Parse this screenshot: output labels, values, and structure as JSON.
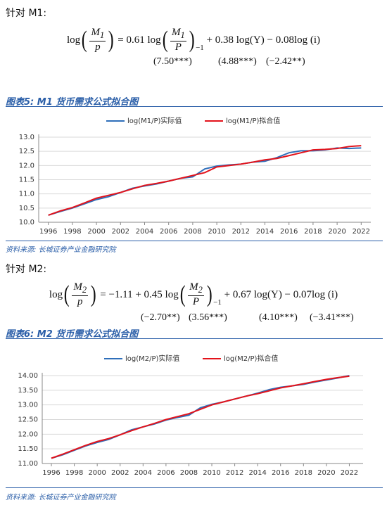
{
  "sections": [
    {
      "lead": "针对 M1:",
      "equation": [
        {
          "text": "log"
        },
        {
          "paren": "("
        },
        {
          "num": "M",
          "num_sub": "1",
          "den": "p"
        },
        {
          "paren": ")"
        },
        {
          "text": " = 0.61 log"
        },
        {
          "paren": "("
        },
        {
          "num": "M",
          "num_sub": "1",
          "den": "P"
        },
        {
          "paren": ")"
        },
        {
          "sub": "−1"
        },
        {
          "text": " + 0.38 log(Y) − 0.08log (i)"
        }
      ],
      "stats": [
        "(7.50***)",
        "(4.88***)",
        "(−2.42**)"
      ],
      "caption": "图表5:  M1 货币需求公式拟合图",
      "source": "资料来源: 长城证券产业金融研究院"
    },
    {
      "lead": "针对 M2:",
      "equation": [
        {
          "text": "log"
        },
        {
          "paren": "("
        },
        {
          "num": "M",
          "num_sub": "2",
          "den": "p"
        },
        {
          "paren": ")"
        },
        {
          "text": " = −1.11 + 0.45 log"
        },
        {
          "paren": "("
        },
        {
          "num": "M",
          "num_sub": "2",
          "den": "P"
        },
        {
          "paren": ")"
        },
        {
          "sub": "−1"
        },
        {
          "text": " + 0.67 log(Y) − 0.07log (i)"
        }
      ],
      "stats": [
        "(−2.70**)",
        "(3.56***)",
        "(4.10***)",
        "(−3.41***)"
      ],
      "caption": "图表6:  M2 货币需求公式拟合图",
      "source": "资料来源: 长城证券产业金融研究院"
    }
  ],
  "chart_data": [
    {
      "type": "line",
      "x": [
        1996,
        1997,
        1998,
        1999,
        2000,
        2001,
        2002,
        2003,
        2004,
        2005,
        2006,
        2007,
        2008,
        2009,
        2010,
        2011,
        2012,
        2013,
        2014,
        2015,
        2016,
        2017,
        2018,
        2019,
        2020,
        2021,
        2022
      ],
      "xlim": [
        1995.2,
        2022.8
      ],
      "xticks": [
        1996,
        1998,
        2000,
        2002,
        2004,
        2006,
        2008,
        2010,
        2012,
        2014,
        2016,
        2018,
        2020,
        2022
      ],
      "ylim": [
        10,
        13
      ],
      "yticks": [
        {
          "value": 10,
          "label": "10.0"
        },
        {
          "value": 10.5,
          "label": "10.5"
        },
        {
          "value": 11,
          "label": "11.0"
        },
        {
          "value": 11.5,
          "label": "11.5"
        },
        {
          "value": 12,
          "label": "12.0"
        },
        {
          "value": 12.5,
          "label": "12.5"
        },
        {
          "value": 13,
          "label": "13.0"
        }
      ],
      "grid": true,
      "legend": "top",
      "series": [
        {
          "name": "log(M1/P)实际值",
          "color": "#2f6fba",
          "values": [
            10.25,
            10.38,
            10.5,
            10.65,
            10.8,
            10.9,
            11.05,
            11.2,
            11.28,
            11.35,
            11.45,
            11.55,
            11.6,
            11.88,
            11.98,
            12.02,
            12.05,
            12.12,
            12.15,
            12.28,
            12.45,
            12.52,
            12.52,
            12.55,
            12.62,
            12.6,
            12.62
          ]
        },
        {
          "name": "log(M1/P)拟合值",
          "color": "#e3131b",
          "values": [
            10.25,
            10.4,
            10.52,
            10.68,
            10.85,
            10.95,
            11.05,
            11.18,
            11.3,
            11.37,
            11.45,
            11.55,
            11.65,
            11.75,
            11.95,
            12.0,
            12.05,
            12.12,
            12.2,
            12.25,
            12.35,
            12.45,
            12.55,
            12.57,
            12.6,
            12.67,
            12.7
          ]
        }
      ]
    },
    {
      "type": "line",
      "x": [
        1996,
        1997,
        1998,
        1999,
        2000,
        2001,
        2002,
        2003,
        2004,
        2005,
        2006,
        2007,
        2008,
        2009,
        2010,
        2011,
        2012,
        2013,
        2014,
        2015,
        2016,
        2017,
        2018,
        2019,
        2020,
        2021,
        2022
      ],
      "xlim": [
        1995.2,
        2023.2
      ],
      "xticks": [
        1996,
        1998,
        2000,
        2002,
        2004,
        2006,
        2008,
        2010,
        2012,
        2014,
        2016,
        2018,
        2020,
        2022
      ],
      "ylim": [
        11,
        14
      ],
      "yticks": [
        {
          "value": 11,
          "label": "11.00"
        },
        {
          "value": 11.5,
          "label": "11.50"
        },
        {
          "value": 12,
          "label": "12.00"
        },
        {
          "value": 12.5,
          "label": "12.50"
        },
        {
          "value": 13,
          "label": "13.00"
        },
        {
          "value": 13.5,
          "label": "13.50"
        },
        {
          "value": 14,
          "label": "14.00"
        }
      ],
      "grid": true,
      "legend": "top",
      "series": [
        {
          "name": "log(M2/P)实际值",
          "color": "#2f6fba",
          "values": [
            11.18,
            11.3,
            11.45,
            11.6,
            11.72,
            11.82,
            11.98,
            12.15,
            12.25,
            12.35,
            12.48,
            12.57,
            12.65,
            12.9,
            13.02,
            13.1,
            13.2,
            13.3,
            13.4,
            13.52,
            13.6,
            13.65,
            13.7,
            13.78,
            13.85,
            13.92,
            14.0
          ]
        },
        {
          "name": "log(M2/P)拟合值",
          "color": "#e3131b",
          "values": [
            11.18,
            11.32,
            11.47,
            11.62,
            11.75,
            11.85,
            11.98,
            12.12,
            12.25,
            12.37,
            12.5,
            12.6,
            12.7,
            12.85,
            13.0,
            13.1,
            13.2,
            13.3,
            13.38,
            13.48,
            13.58,
            13.65,
            13.72,
            13.8,
            13.87,
            13.93,
            13.98
          ]
        }
      ]
    }
  ]
}
